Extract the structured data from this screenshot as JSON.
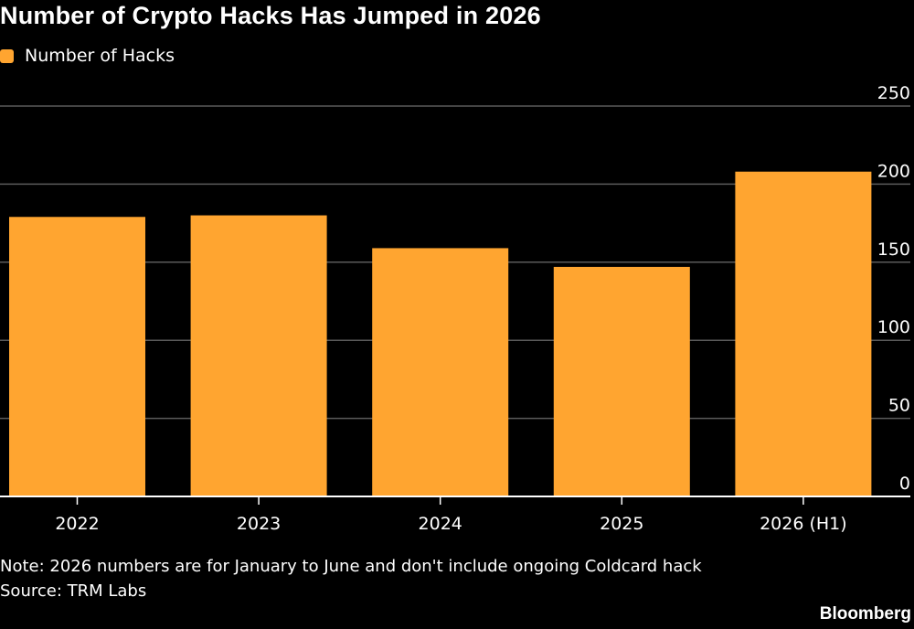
{
  "colors": {
    "background": "#000000",
    "bar": "#FFA530",
    "text": "#FFFFFF",
    "gridline": "#5A5A5A",
    "axis": "#FFFFFF"
  },
  "note": "Note: 2026 numbers are for January to June and don't include ongoing Coldcard hack",
  "source": "Source: TRM Labs",
  "brand": "Bloomberg",
  "chart_data": {
    "type": "bar",
    "title": "Number of Crypto Hacks Has Jumped in 2026",
    "categories": [
      "2022",
      "2023",
      "2024",
      "2025",
      "2026 (H1)"
    ],
    "series": [
      {
        "name": "Number of Hacks",
        "values": [
          179,
          180,
          159,
          147,
          208
        ]
      }
    ],
    "xlabel": "",
    "ylabel": "",
    "ylim": [
      0,
      250
    ],
    "yticks": [
      0,
      50,
      100,
      150,
      200,
      250
    ],
    "ytick_labels": [
      "0",
      "50",
      "100",
      "150",
      "200",
      "250"
    ],
    "grid": true,
    "y_axis_side": "right",
    "legend_position": "top-left"
  }
}
